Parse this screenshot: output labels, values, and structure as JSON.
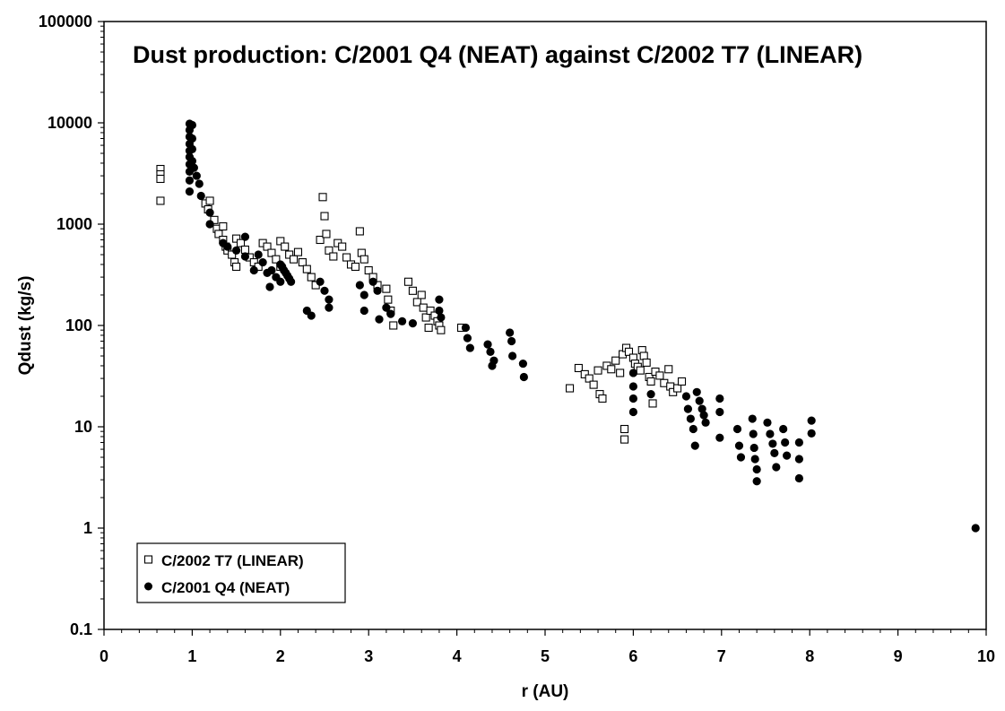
{
  "chart_data": {
    "type": "scatter",
    "title": "Dust production: C/2001 Q4 (NEAT) against C/2002 T7 (LINEAR)",
    "xlabel": "r (AU)",
    "ylabel": "Qdust (kg/s)",
    "xlim": [
      0,
      10
    ],
    "ylim": [
      0.1,
      100000
    ],
    "yscale": "log",
    "grid": false,
    "legend_position": "bottom-left",
    "x_ticks": [
      "0",
      "1",
      "2",
      "3",
      "4",
      "5",
      "6",
      "7",
      "8",
      "9",
      "10"
    ],
    "y_ticks": [
      "0.1",
      "1",
      "10",
      "100",
      "1000",
      "10000",
      "100000"
    ],
    "series": [
      {
        "name": "C/2002 T7 (LINEAR)",
        "marker": "open-square",
        "points": [
          [
            0.64,
            3500
          ],
          [
            0.64,
            3100
          ],
          [
            0.64,
            2800
          ],
          [
            0.64,
            1700
          ],
          [
            1.15,
            1600
          ],
          [
            1.18,
            1400
          ],
          [
            1.2,
            1700
          ],
          [
            1.25,
            1100
          ],
          [
            1.28,
            900
          ],
          [
            1.3,
            800
          ],
          [
            1.35,
            700
          ],
          [
            1.35,
            950
          ],
          [
            1.38,
            600
          ],
          [
            1.4,
            550
          ],
          [
            1.45,
            500
          ],
          [
            1.48,
            420
          ],
          [
            1.5,
            380
          ],
          [
            1.5,
            720
          ],
          [
            1.55,
            650
          ],
          [
            1.6,
            560
          ],
          [
            1.65,
            470
          ],
          [
            1.7,
            420
          ],
          [
            1.75,
            380
          ],
          [
            1.8,
            650
          ],
          [
            1.85,
            600
          ],
          [
            1.9,
            520
          ],
          [
            1.95,
            450
          ],
          [
            2.0,
            380
          ],
          [
            2.0,
            680
          ],
          [
            2.05,
            600
          ],
          [
            2.1,
            500
          ],
          [
            2.15,
            450
          ],
          [
            2.2,
            530
          ],
          [
            2.25,
            420
          ],
          [
            2.3,
            360
          ],
          [
            2.35,
            300
          ],
          [
            2.4,
            250
          ],
          [
            2.45,
            700
          ],
          [
            2.48,
            1850
          ],
          [
            2.5,
            1200
          ],
          [
            2.52,
            800
          ],
          [
            2.55,
            550
          ],
          [
            2.6,
            480
          ],
          [
            2.65,
            650
          ],
          [
            2.7,
            600
          ],
          [
            2.75,
            470
          ],
          [
            2.8,
            400
          ],
          [
            2.85,
            380
          ],
          [
            2.9,
            850
          ],
          [
            2.92,
            520
          ],
          [
            2.95,
            450
          ],
          [
            3.0,
            350
          ],
          [
            3.05,
            300
          ],
          [
            3.1,
            250
          ],
          [
            3.2,
            230
          ],
          [
            3.22,
            180
          ],
          [
            3.25,
            140
          ],
          [
            3.28,
            100
          ],
          [
            3.45,
            270
          ],
          [
            3.5,
            220
          ],
          [
            3.55,
            170
          ],
          [
            3.6,
            200
          ],
          [
            3.62,
            150
          ],
          [
            3.65,
            120
          ],
          [
            3.68,
            95
          ],
          [
            3.7,
            140
          ],
          [
            3.75,
            125
          ],
          [
            3.78,
            110
          ],
          [
            3.8,
            100
          ],
          [
            3.82,
            90
          ],
          [
            4.05,
            95
          ],
          [
            5.28,
            24
          ],
          [
            5.38,
            38
          ],
          [
            5.45,
            33
          ],
          [
            5.5,
            30
          ],
          [
            5.55,
            26
          ],
          [
            5.6,
            36
          ],
          [
            5.62,
            21
          ],
          [
            5.65,
            19
          ],
          [
            5.7,
            40
          ],
          [
            5.75,
            37
          ],
          [
            5.8,
            45
          ],
          [
            5.85,
            34
          ],
          [
            5.88,
            52
          ],
          [
            5.9,
            9.5
          ],
          [
            5.9,
            7.5
          ],
          [
            5.92,
            60
          ],
          [
            5.95,
            55
          ],
          [
            6.0,
            48
          ],
          [
            6.02,
            42
          ],
          [
            6.05,
            39
          ],
          [
            6.08,
            36
          ],
          [
            6.1,
            57
          ],
          [
            6.12,
            50
          ],
          [
            6.15,
            43
          ],
          [
            6.18,
            31
          ],
          [
            6.2,
            28
          ],
          [
            6.22,
            17
          ],
          [
            6.25,
            35
          ],
          [
            6.3,
            32
          ],
          [
            6.35,
            27
          ],
          [
            6.4,
            37
          ],
          [
            6.42,
            25
          ],
          [
            6.45,
            22
          ],
          [
            6.5,
            24
          ],
          [
            6.55,
            28
          ]
        ]
      },
      {
        "name": "C/2001 Q4 (NEAT)",
        "marker": "filled-circle",
        "points": [
          [
            0.97,
            9800
          ],
          [
            0.97,
            8500
          ],
          [
            0.97,
            7300
          ],
          [
            0.97,
            6200
          ],
          [
            0.97,
            5300
          ],
          [
            0.97,
            4600
          ],
          [
            0.97,
            3900
          ],
          [
            0.97,
            3300
          ],
          [
            0.97,
            2700
          ],
          [
            0.97,
            2100
          ],
          [
            1.0,
            9500
          ],
          [
            1.0,
            7000
          ],
          [
            1.0,
            5500
          ],
          [
            1.0,
            4200
          ],
          [
            1.02,
            3600
          ],
          [
            1.05,
            3000
          ],
          [
            1.08,
            2500
          ],
          [
            1.1,
            1900
          ],
          [
            1.2,
            1300
          ],
          [
            1.2,
            1000
          ],
          [
            1.35,
            650
          ],
          [
            1.4,
            600
          ],
          [
            1.5,
            550
          ],
          [
            1.6,
            750
          ],
          [
            1.6,
            480
          ],
          [
            1.7,
            350
          ],
          [
            1.75,
            500
          ],
          [
            1.8,
            420
          ],
          [
            1.85,
            330
          ],
          [
            1.88,
            240
          ],
          [
            1.9,
            350
          ],
          [
            1.95,
            300
          ],
          [
            2.0,
            270
          ],
          [
            2.0,
            400
          ],
          [
            2.02,
            380
          ],
          [
            2.04,
            350
          ],
          [
            2.06,
            330
          ],
          [
            2.08,
            310
          ],
          [
            2.1,
            290
          ],
          [
            2.12,
            270
          ],
          [
            2.3,
            140
          ],
          [
            2.35,
            125
          ],
          [
            2.45,
            270
          ],
          [
            2.5,
            220
          ],
          [
            2.55,
            180
          ],
          [
            2.55,
            150
          ],
          [
            2.9,
            250
          ],
          [
            2.95,
            200
          ],
          [
            2.95,
            140
          ],
          [
            3.05,
            270
          ],
          [
            3.1,
            220
          ],
          [
            3.12,
            115
          ],
          [
            3.2,
            150
          ],
          [
            3.25,
            130
          ],
          [
            3.38,
            110
          ],
          [
            3.5,
            105
          ],
          [
            3.8,
            180
          ],
          [
            3.8,
            140
          ],
          [
            3.82,
            120
          ],
          [
            4.1,
            95
          ],
          [
            4.12,
            75
          ],
          [
            4.15,
            60
          ],
          [
            4.35,
            65
          ],
          [
            4.38,
            55
          ],
          [
            4.4,
            40
          ],
          [
            4.42,
            45
          ],
          [
            4.6,
            85
          ],
          [
            4.62,
            70
          ],
          [
            4.63,
            50
          ],
          [
            4.75,
            42
          ],
          [
            4.76,
            31
          ],
          [
            6.0,
            34
          ],
          [
            6.0,
            25
          ],
          [
            6.0,
            19
          ],
          [
            6.0,
            14
          ],
          [
            6.2,
            21
          ],
          [
            6.6,
            20
          ],
          [
            6.62,
            15
          ],
          [
            6.65,
            12
          ],
          [
            6.68,
            9.5
          ],
          [
            6.7,
            6.5
          ],
          [
            6.72,
            22
          ],
          [
            6.75,
            18
          ],
          [
            6.78,
            15
          ],
          [
            6.8,
            13
          ],
          [
            6.82,
            11
          ],
          [
            6.98,
            19
          ],
          [
            6.98,
            14
          ],
          [
            6.98,
            7.8
          ],
          [
            7.18,
            9.5
          ],
          [
            7.2,
            6.5
          ],
          [
            7.22,
            5.0
          ],
          [
            7.35,
            12
          ],
          [
            7.36,
            8.5
          ],
          [
            7.37,
            6.2
          ],
          [
            7.38,
            4.8
          ],
          [
            7.4,
            3.8
          ],
          [
            7.4,
            2.9
          ],
          [
            7.52,
            11
          ],
          [
            7.55,
            8.5
          ],
          [
            7.58,
            6.8
          ],
          [
            7.6,
            5.5
          ],
          [
            7.62,
            4.0
          ],
          [
            7.7,
            9.5
          ],
          [
            7.72,
            7.0
          ],
          [
            7.74,
            5.2
          ],
          [
            7.88,
            7.0
          ],
          [
            7.88,
            4.8
          ],
          [
            7.88,
            3.1
          ],
          [
            8.02,
            11.5
          ],
          [
            8.02,
            8.6
          ],
          [
            9.88,
            1.0
          ]
        ]
      }
    ]
  }
}
